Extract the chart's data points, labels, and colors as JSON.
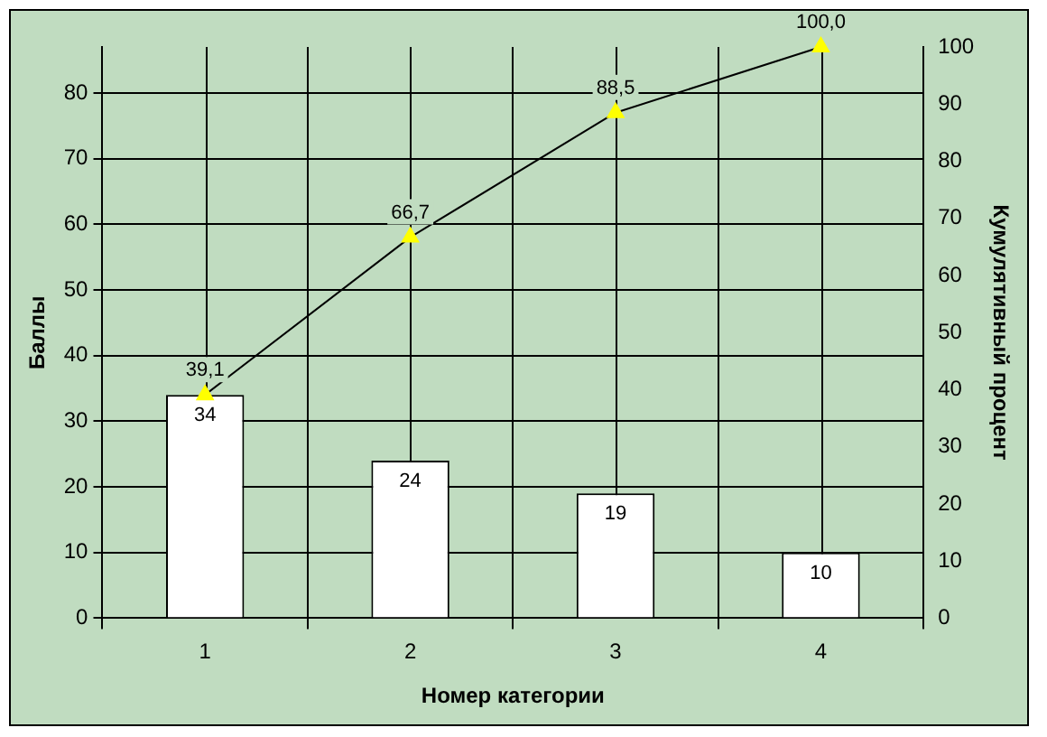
{
  "chart_data": {
    "type": "bar",
    "xlabel": "Номер категории",
    "ylabel": "Баллы",
    "y2label": "Кумулятивный процент",
    "categories": [
      "1",
      "2",
      "3",
      "4"
    ],
    "series": [
      {
        "color": "#ffffff",
        "values": [
          34,
          24,
          19,
          10
        ],
        "value_labels": [
          "34",
          "24",
          "19",
          "10"
        ]
      },
      {
        "type": "line",
        "axis": "y2",
        "color": "#000000",
        "marker": "triangle",
        "colors": [
          "#ffff00",
          "#ffff00",
          "#ffff00",
          "#ffff00"
        ],
        "values": [
          39.1,
          66.7,
          88.5,
          100.0
        ],
        "value_labels": [
          "39,1",
          "66,7",
          "88,5",
          "100,0"
        ]
      }
    ],
    "ylim": [
      0,
      87
    ],
    "yticks": [
      0,
      10,
      20,
      30,
      40,
      50,
      60,
      70,
      80
    ],
    "y2lim": [
      0,
      100
    ],
    "y2ticks": [
      0,
      10,
      20,
      30,
      40,
      50,
      60,
      70,
      80,
      90,
      100
    ],
    "grid": true,
    "legend": false
  }
}
